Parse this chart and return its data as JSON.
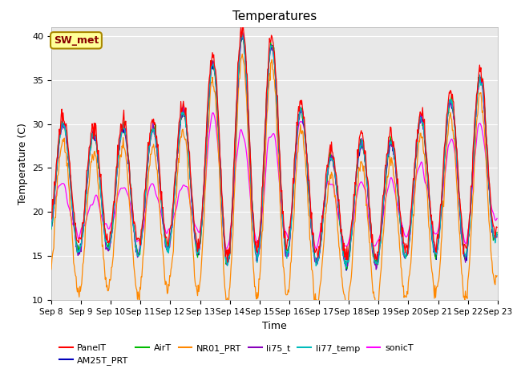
{
  "title": "Temperatures",
  "xlabel": "Time",
  "ylabel": "Temperature (C)",
  "ylim": [
    10,
    41
  ],
  "yticks": [
    10,
    15,
    20,
    25,
    30,
    35,
    40
  ],
  "x_tick_labels": [
    "Sep 8",
    "Sep 9",
    "Sep 10",
    "Sep 11",
    "Sep 12",
    "Sep 13",
    "Sep 14",
    "Sep 15",
    "Sep 16",
    "Sep 17",
    "Sep 18",
    "Sep 19",
    "Sep 20",
    "Sep 21",
    "Sep 22",
    "Sep 23"
  ],
  "series_colors": {
    "PanelT": "#FF0000",
    "AM25T_PRT": "#0000BB",
    "AirT": "#00BB00",
    "NR01_PRT": "#FF8800",
    "li75_t": "#8800BB",
    "li77_temp": "#00BBBB",
    "sonicT": "#FF00FF"
  },
  "background_color": "#E8E8E8",
  "annotation_text": "SW_met",
  "annotation_bg": "#FFFF99",
  "annotation_border": "#AA8800",
  "annotation_text_color": "#880000",
  "figsize": [
    6.4,
    4.8
  ],
  "dpi": 100
}
